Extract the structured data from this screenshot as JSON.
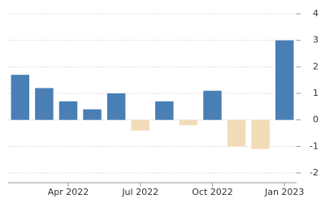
{
  "chart_data": {
    "type": "bar",
    "categories": [
      null,
      null,
      "Apr 2022",
      null,
      null,
      "Jul 2022",
      null,
      null,
      "Oct 2022",
      null,
      null,
      "Jan 2023"
    ],
    "values": [
      1.7,
      1.2,
      0.7,
      0.4,
      1.0,
      -0.4,
      0.7,
      -0.2,
      1.1,
      -1.0,
      -1.1,
      3.0
    ],
    "positive_color": "#4a7fb5",
    "negative_color": "#f2dcb8",
    "ylim": [
      -2,
      4
    ],
    "yticks": [
      -2,
      -1,
      0,
      1,
      2,
      3,
      4
    ],
    "grid": true,
    "y_axis_side": "right"
  }
}
